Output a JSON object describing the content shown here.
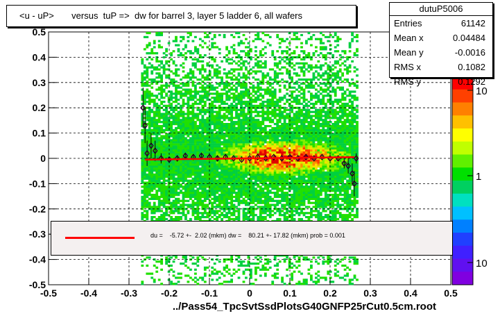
{
  "title": "<u - uP>       versus  tuP =>  dw for barrel 3, layer 5 ladder 6, all wafers",
  "stats": {
    "name": "dutuP5006",
    "rows": [
      {
        "label": "Entries",
        "value": "61142"
      },
      {
        "label": "Mean x",
        "value": "0.04484"
      },
      {
        "label": "Mean y",
        "value": "-0.0016"
      },
      {
        "label": "RMS x",
        "value": "0.1082"
      },
      {
        "label": "RMS y",
        "value": "0.1292"
      }
    ]
  },
  "legend_text": "du =    -5.72 +-  2.02 (mkm) dw =    80.21 +- 17.82 (mkm) prob = 0.001",
  "xlabel": "../Pass54_TpcSvtSsdPlotsG40GNFP25rCut0.5cm.root",
  "chart_data": {
    "type": "heatmap",
    "xlim": [
      -0.5,
      0.5
    ],
    "ylim": [
      -0.5,
      0.5
    ],
    "x_ticks": [
      "-0.5",
      "-0.4",
      "-0.3",
      "-0.2",
      "-0.1",
      "0",
      "0.1",
      "0.2",
      "0.3",
      "0.4",
      "0.5"
    ],
    "y_ticks": [
      "-0.5",
      "-0.4",
      "-0.3",
      "-0.2",
      "-0.1",
      "0",
      "0.1",
      "0.2",
      "0.3",
      "0.4",
      "0.5"
    ],
    "color_scale": "log",
    "color_ticks": [
      "10",
      "1",
      "10"
    ],
    "grid": true,
    "occupied_x_range": [
      -0.27,
      0.27
    ],
    "profile_points": [
      {
        "x": -0.265,
        "y": 0.2,
        "err": 0.08
      },
      {
        "x": -0.26,
        "y": 0.13,
        "err": 0.07
      },
      {
        "x": -0.255,
        "y": 0.02,
        "err": 0.05
      },
      {
        "x": -0.245,
        "y": 0.05,
        "err": 0.05
      },
      {
        "x": -0.235,
        "y": 0.03,
        "err": 0.04
      },
      {
        "x": -0.22,
        "y": 0.0,
        "err": 0.02
      },
      {
        "x": -0.2,
        "y": -0.005,
        "err": 0.01
      },
      {
        "x": -0.18,
        "y": 0.0,
        "err": 0.01
      },
      {
        "x": -0.16,
        "y": 0.01,
        "err": 0.01
      },
      {
        "x": -0.14,
        "y": 0.005,
        "err": 0.01
      },
      {
        "x": -0.12,
        "y": 0.01,
        "err": 0.01
      },
      {
        "x": -0.1,
        "y": 0.005,
        "err": 0.01
      },
      {
        "x": -0.08,
        "y": 0.0,
        "err": 0.01
      },
      {
        "x": -0.06,
        "y": 0.005,
        "err": 0.01
      },
      {
        "x": -0.04,
        "y": 0.0,
        "err": 0.005
      },
      {
        "x": -0.02,
        "y": -0.005,
        "err": 0.005
      },
      {
        "x": 0.0,
        "y": 0.0,
        "err": 0.005
      },
      {
        "x": 0.02,
        "y": 0.005,
        "err": 0.005
      },
      {
        "x": 0.04,
        "y": 0.0,
        "err": 0.005
      },
      {
        "x": 0.06,
        "y": 0.005,
        "err": 0.005
      },
      {
        "x": 0.08,
        "y": 0.0,
        "err": 0.005
      },
      {
        "x": 0.1,
        "y": 0.005,
        "err": 0.005
      },
      {
        "x": 0.12,
        "y": 0.0,
        "err": 0.005
      },
      {
        "x": 0.14,
        "y": 0.005,
        "err": 0.005
      },
      {
        "x": 0.16,
        "y": 0.0,
        "err": 0.005
      },
      {
        "x": 0.18,
        "y": 0.005,
        "err": 0.005
      },
      {
        "x": 0.2,
        "y": 0.0,
        "err": 0.01
      },
      {
        "x": 0.22,
        "y": 0.0,
        "err": 0.01
      },
      {
        "x": 0.235,
        "y": -0.02,
        "err": 0.02
      },
      {
        "x": 0.245,
        "y": -0.03,
        "err": 0.03
      },
      {
        "x": 0.255,
        "y": -0.06,
        "err": 0.04
      },
      {
        "x": 0.26,
        "y": -0.1,
        "err": 0.05
      },
      {
        "x": 0.265,
        "y": 0.0,
        "err": 0.02
      }
    ],
    "fit_line": {
      "x": [
        -0.26,
        0.26
      ],
      "y": [
        -0.005,
        0.005
      ],
      "color": "#ff0000"
    }
  }
}
